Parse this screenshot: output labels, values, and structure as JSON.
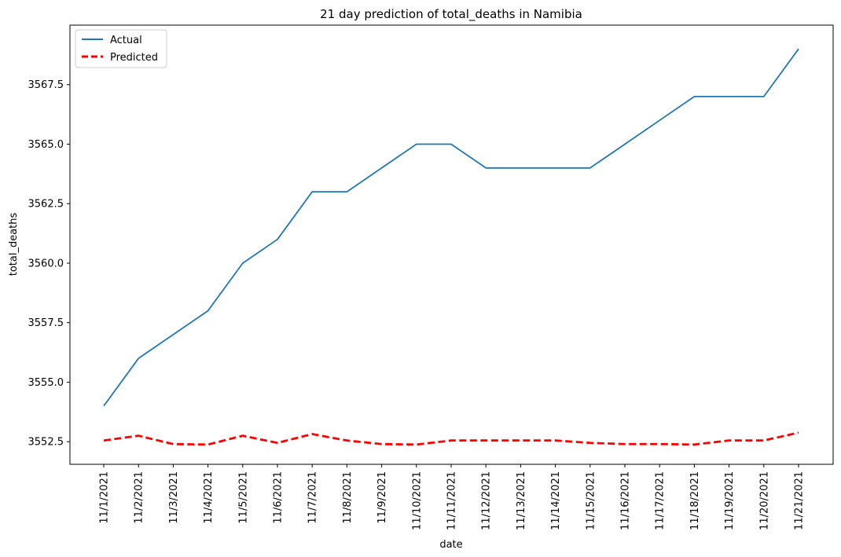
{
  "chart_data": {
    "type": "line",
    "title": "21 day prediction of total_deaths in Namibia",
    "xlabel": "date",
    "ylabel": "total_deaths",
    "categories": [
      "11/1/2021",
      "11/2/2021",
      "11/3/2021",
      "11/4/2021",
      "11/5/2021",
      "11/6/2021",
      "11/7/2021",
      "11/8/2021",
      "11/9/2021",
      "11/10/2021",
      "11/11/2021",
      "11/12/2021",
      "11/13/2021",
      "11/14/2021",
      "11/15/2021",
      "11/16/2021",
      "11/17/2021",
      "11/18/2021",
      "11/19/2021",
      "11/20/2021",
      "11/21/2021"
    ],
    "series": [
      {
        "name": "Actual",
        "color": "#1f77b4",
        "style": "solid",
        "values": [
          3554,
          3556,
          3557,
          3558,
          3560,
          3561,
          3563,
          3563,
          3564,
          3565,
          3565,
          3564,
          3564,
          3564,
          3564,
          3565,
          3566,
          3567,
          3567,
          3567,
          3569
        ]
      },
      {
        "name": "Predicted",
        "color": "#ff0000",
        "style": "dashed",
        "values": [
          3552.55,
          3552.75,
          3552.4,
          3552.38,
          3552.75,
          3552.45,
          3552.82,
          3552.55,
          3552.4,
          3552.38,
          3552.55,
          3552.55,
          3552.55,
          3552.55,
          3552.45,
          3552.4,
          3552.4,
          3552.38,
          3552.55,
          3552.55,
          3552.88
        ]
      }
    ],
    "yticks": [
      3552.5,
      3555.0,
      3557.5,
      3560.0,
      3562.5,
      3565.0,
      3567.5
    ],
    "ytick_labels": [
      "3552.5",
      "3555.0",
      "3557.5",
      "3560.0",
      "3562.5",
      "3565.0",
      "3567.5"
    ],
    "ylim": [
      3551.55,
      3570.0
    ],
    "grid": false,
    "legend_position": "top-left"
  }
}
